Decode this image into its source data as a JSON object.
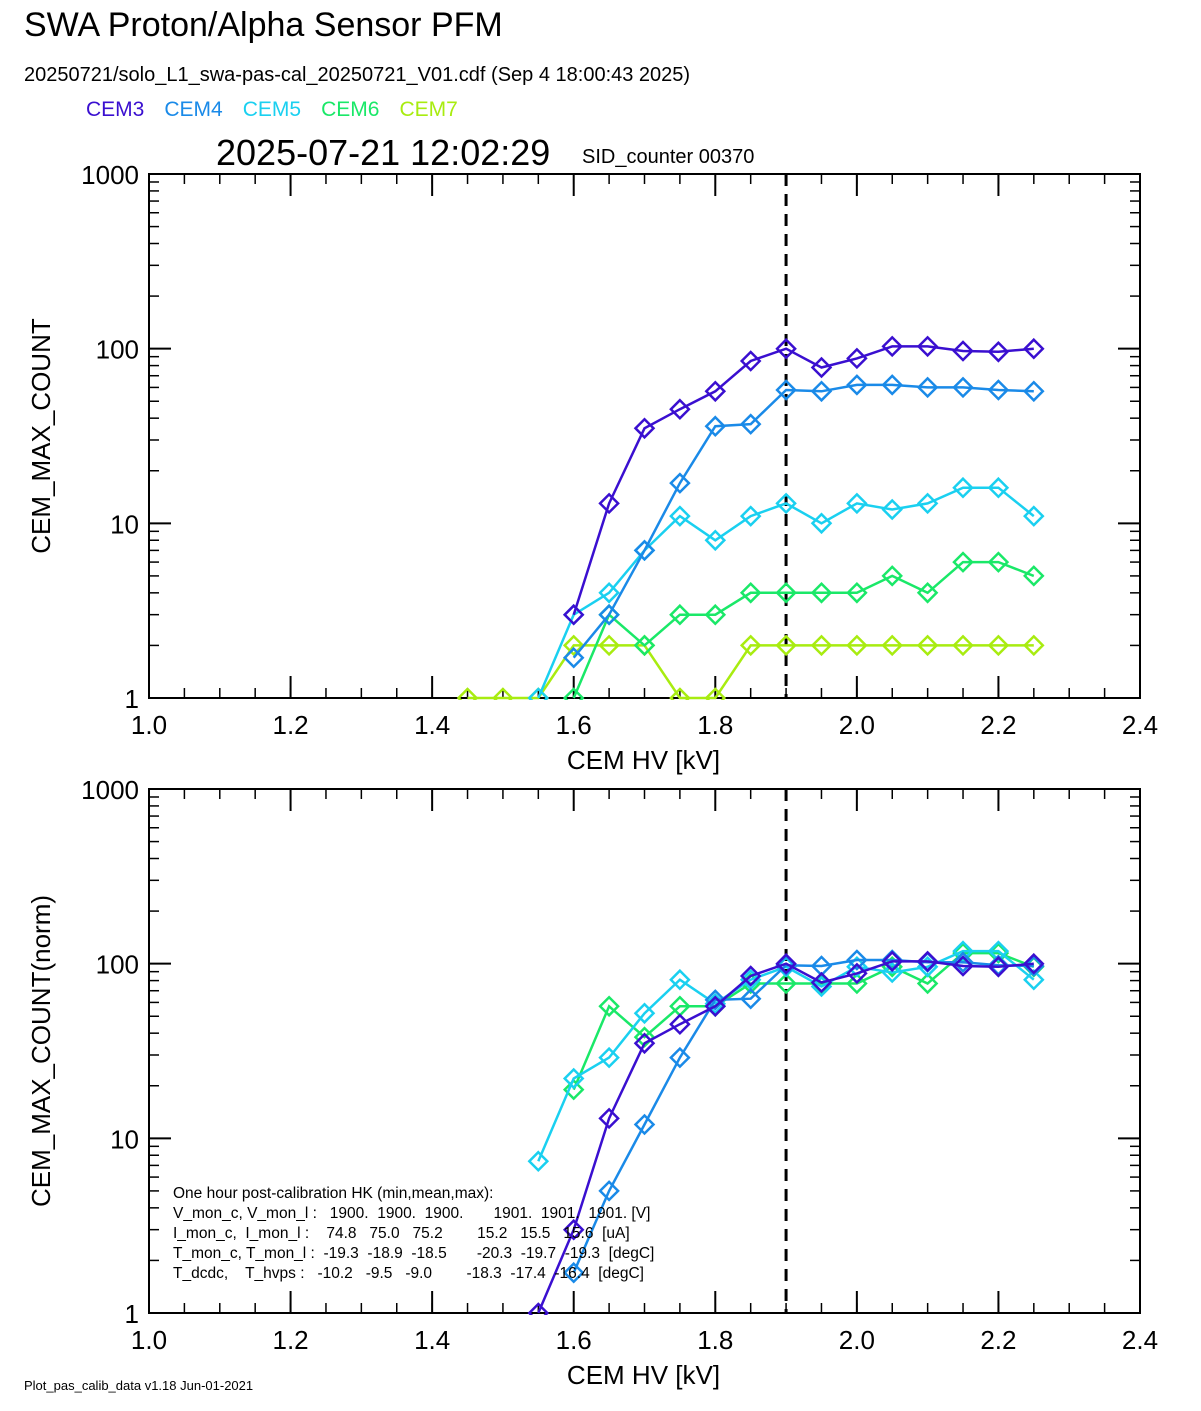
{
  "title": "SWA Proton/Alpha Sensor PFM",
  "subtitle": "20250721/solo_L1_swa-pas-cal_20250721_V01.cdf  (Sep  4 18:00:43 2025)",
  "legend": [
    {
      "name": "CEM3",
      "color": "#3a0fd0"
    },
    {
      "name": "CEM4",
      "color": "#1a8ae8"
    },
    {
      "name": "CEM5",
      "color": "#1ad0f0"
    },
    {
      "name": "CEM6",
      "color": "#1ae868"
    },
    {
      "name": "CEM7",
      "color": "#a8ec10"
    }
  ],
  "timestamp": "2025-07-21 12:02:29",
  "sid_counter": "SID_counter 00370",
  "footer": "Plot_pas_calib_data v1.18 Jun-01-2021",
  "hk": {
    "heading": "One hour post-calibration HK (min,mean,max):",
    "lines": [
      "V_mon_c, V_mon_l :   1900.  1900.  1900.       1901.  1901.  1901. [V]",
      "I_mon_c,  I_mon_l :    74.8   75.0   75.2        15.2   15.5   15.6  [uA]",
      "T_mon_c, T_mon_l :  -19.3  -18.9  -18.5       -20.3  -19.7  -19.3  [degC]",
      "T_dcdc,    T_hvps :   -10.2   -9.5   -9.0        -18.3  -17.4  -16.4  [degC]"
    ]
  },
  "chart_data": [
    {
      "type": "line",
      "xlabel": "CEM HV [kV]",
      "ylabel": "CEM_MAX_COUNT",
      "xlim": [
        1.0,
        2.4
      ],
      "ylim": [
        1,
        1000
      ],
      "yscale": "log",
      "xticks": [
        "1.0",
        "1.2",
        "1.4",
        "1.6",
        "1.8",
        "2.0",
        "2.2",
        "2.4"
      ],
      "yticks": [
        "1",
        "10",
        "100",
        "1000"
      ],
      "vline": 1.9,
      "series": [
        {
          "name": "CEM3",
          "color": "#3a0fd0",
          "x": [
            1.6,
            1.65,
            1.7,
            1.75,
            1.8,
            1.85,
            1.9,
            1.95,
            2.0,
            2.05,
            2.1,
            2.15,
            2.2,
            2.25
          ],
          "y": [
            3,
            13,
            35,
            45,
            57,
            85,
            100,
            78,
            88,
            103,
            103,
            97,
            96,
            100
          ]
        },
        {
          "name": "CEM4",
          "color": "#1a8ae8",
          "x": [
            1.6,
            1.65,
            1.7,
            1.75,
            1.8,
            1.85,
            1.9,
            1.95,
            2.0,
            2.05,
            2.1,
            2.15,
            2.2,
            2.25
          ],
          "y": [
            1.7,
            3,
            7,
            17,
            36,
            37,
            58,
            57,
            62,
            62,
            60,
            60,
            58,
            57
          ]
        },
        {
          "name": "CEM5",
          "color": "#1ad0f0",
          "x": [
            1.55,
            1.6,
            1.65,
            1.7,
            1.75,
            1.8,
            1.85,
            1.9,
            1.95,
            2.0,
            2.05,
            2.1,
            2.15,
            2.2,
            2.25
          ],
          "y": [
            1,
            3,
            4,
            7,
            11,
            8,
            11,
            13,
            10,
            13,
            12,
            13,
            16,
            16,
            11
          ]
        },
        {
          "name": "CEM6",
          "color": "#1ae868",
          "x": [
            1.6,
            1.65,
            1.7,
            1.75,
            1.8,
            1.85,
            1.9,
            1.95,
            2.0,
            2.05,
            2.1,
            2.15,
            2.2,
            2.25
          ],
          "y": [
            1,
            3,
            2,
            3,
            3,
            4,
            4,
            4,
            4,
            5,
            4,
            6,
            6,
            5
          ]
        },
        {
          "name": "CEM7",
          "color": "#a8ec10",
          "x": [
            1.45,
            1.5,
            1.55,
            1.6,
            1.65,
            1.7,
            1.75,
            1.8,
            1.85,
            1.9,
            1.95,
            2.0,
            2.05,
            2.1,
            2.15,
            2.2,
            2.25
          ],
          "y": [
            1,
            1,
            1,
            2,
            2,
            2,
            1,
            1,
            2,
            2,
            2,
            2,
            2,
            2,
            2,
            2,
            2
          ]
        }
      ]
    },
    {
      "type": "line",
      "xlabel": "CEM HV [kV]",
      "ylabel": "CEM_MAX_COUNT(norm)",
      "xlim": [
        1.0,
        2.4
      ],
      "ylim": [
        1,
        1000
      ],
      "yscale": "log",
      "xticks": [
        "1.0",
        "1.2",
        "1.4",
        "1.6",
        "1.8",
        "2.0",
        "2.2",
        "2.4"
      ],
      "yticks": [
        "1",
        "10",
        "100",
        "1000"
      ],
      "vline": 1.9,
      "series": [
        {
          "name": "CEM3",
          "color": "#3a0fd0",
          "x": [
            1.55,
            1.6,
            1.65,
            1.7,
            1.75,
            1.8,
            1.85,
            1.9,
            1.95,
            2.0,
            2.05,
            2.1,
            2.15,
            2.2,
            2.25
          ],
          "y": [
            1,
            3,
            13,
            35,
            45,
            57,
            85,
            100,
            78,
            88,
            103,
            103,
            97,
            96,
            100
          ]
        },
        {
          "name": "CEM4",
          "color": "#1a8ae8",
          "x": [
            1.6,
            1.65,
            1.7,
            1.75,
            1.8,
            1.85,
            1.9,
            1.95,
            2.0,
            2.05,
            2.1,
            2.15,
            2.2,
            2.25
          ],
          "y": [
            1.7,
            5,
            12,
            29,
            62,
            63,
            98,
            97,
            105,
            105,
            102,
            102,
            98,
            97
          ]
        },
        {
          "name": "CEM5",
          "color": "#1ad0f0",
          "x": [
            1.55,
            1.6,
            1.65,
            1.7,
            1.75,
            1.8,
            1.85,
            1.9,
            1.95,
            2.0,
            2.05,
            2.1,
            2.15,
            2.2,
            2.25
          ],
          "y": [
            7.4,
            22,
            29,
            52,
            81,
            59,
            81,
            96,
            74,
            96,
            89,
            96,
            118,
            118,
            81
          ]
        },
        {
          "name": "CEM6",
          "color": "#1ae868",
          "x": [
            1.6,
            1.65,
            1.7,
            1.75,
            1.8,
            1.85,
            1.9,
            1.95,
            2.0,
            2.05,
            2.1,
            2.15,
            2.2,
            2.25
          ],
          "y": [
            19,
            57,
            38,
            57,
            57,
            77,
            77,
            77,
            77,
            96,
            77,
            115,
            115,
            96
          ]
        }
      ]
    }
  ]
}
